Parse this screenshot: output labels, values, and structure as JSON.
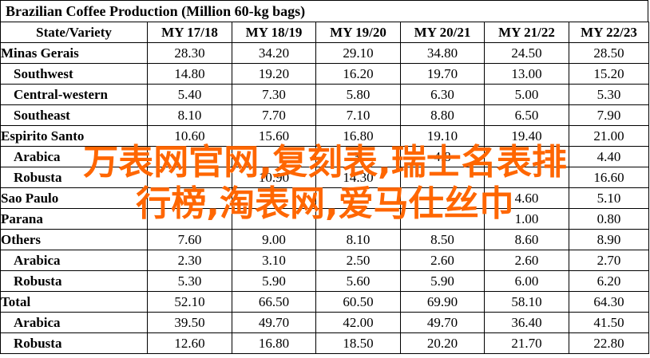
{
  "title": "Brazilian Coffee Production (Million 60-kg bags)",
  "columns": [
    "State/Variety",
    "MY 17/18",
    "MY 18/19",
    "MY 19/20",
    "MY 20/21",
    "MY 21/22",
    "MY 22/23"
  ],
  "rows": [
    {
      "label": "Minas Gerais",
      "indent": false,
      "values": [
        "28.30",
        "34.20",
        "29.10",
        "34.80",
        "24.50",
        "28.50"
      ]
    },
    {
      "label": "Southwest",
      "indent": true,
      "values": [
        "14.80",
        "19.20",
        "16.20",
        "19.70",
        "13.00",
        "15.20"
      ]
    },
    {
      "label": "Central-western",
      "indent": true,
      "values": [
        "5.40",
        "7.30",
        "5.80",
        "6.30",
        "5.00",
        "5.30"
      ]
    },
    {
      "label": "Southeast",
      "indent": true,
      "values": [
        "8.10",
        "7.70",
        "7.10",
        "8.80",
        "6.50",
        "7.90"
      ]
    },
    {
      "label": "Espirito Santo",
      "indent": false,
      "values": [
        "10.60",
        "15.60",
        "16.80",
        "19.10",
        "19.40",
        "21.00"
      ]
    },
    {
      "label": "Arabica",
      "indent": true,
      "values": [
        "",
        "",
        "3.",
        "4.8",
        "",
        "4.40"
      ]
    },
    {
      "label": "Robusta",
      "indent": true,
      "values": [
        "",
        "10.90",
        "14.30",
        "",
        "",
        "16.60"
      ]
    },
    {
      "label": "Sao Paulo",
      "indent": false,
      "values": [
        "",
        "",
        "",
        "",
        "4.60",
        "5.10"
      ]
    },
    {
      "label": "Parana",
      "indent": false,
      "values": [
        "",
        "",
        "",
        "",
        "1.00",
        "0.80"
      ]
    },
    {
      "label": "Others",
      "indent": false,
      "values": [
        "7.60",
        "9.00",
        "8.10",
        "8.50",
        "8.60",
        "8.90"
      ]
    },
    {
      "label": "Arabica",
      "indent": true,
      "values": [
        "2.30",
        "3.10",
        "2.50",
        "2.60",
        "2.60",
        "2.70"
      ]
    },
    {
      "label": "Robusta",
      "indent": true,
      "values": [
        "5.30",
        "5.90",
        "5.60",
        "5.90",
        "6.00",
        "6.20"
      ]
    },
    {
      "label": "Total",
      "indent": false,
      "values": [
        "52.10",
        "66.50",
        "60.50",
        "69.90",
        "58.10",
        "64.30"
      ]
    },
    {
      "label": "Arabica",
      "indent": true,
      "values": [
        "39.50",
        "49.70",
        "42.00",
        "49.70",
        "36.40",
        "41.50"
      ]
    },
    {
      "label": "Robusta",
      "indent": true,
      "values": [
        "12.60",
        "16.80",
        "18.50",
        "20.20",
        "21.70",
        "22.80"
      ]
    }
  ],
  "watermark": {
    "line1": "万表网官网,复刻表,瑞士名表排",
    "line2": "行榜,淘表网,爱马仕丝巾",
    "color": "#ff6600"
  }
}
